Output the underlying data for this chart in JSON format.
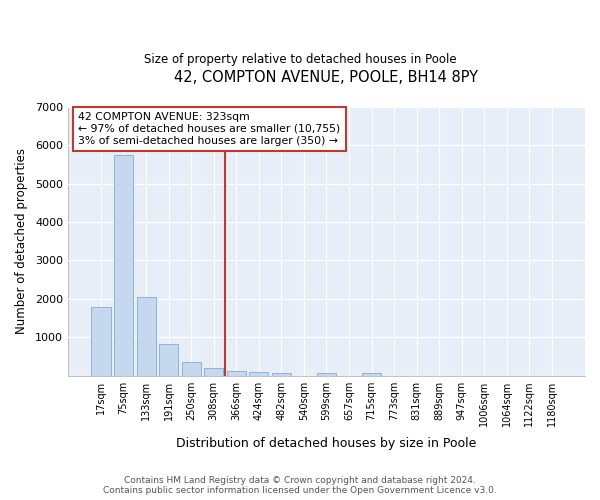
{
  "title1": "42, COMPTON AVENUE, POOLE, BH14 8PY",
  "title2": "Size of property relative to detached houses in Poole",
  "xlabel": "Distribution of detached houses by size in Poole",
  "ylabel": "Number of detached properties",
  "bar_color": "#c5d8ee",
  "bar_edge_color": "#7aaed6",
  "background_color": "#e8eef8",
  "grid_color": "#ffffff",
  "vline_color": "#c0392b",
  "vline_x": 5.5,
  "annotation_line1": "42 COMPTON AVENUE: 323sqm",
  "annotation_line2": "← 97% of detached houses are smaller (10,755)",
  "annotation_line3": "3% of semi-detached houses are larger (350) →",
  "annotation_box_color": "#c0392b",
  "categories": [
    "17sqm",
    "75sqm",
    "133sqm",
    "191sqm",
    "250sqm",
    "308sqm",
    "366sqm",
    "424sqm",
    "482sqm",
    "540sqm",
    "599sqm",
    "657sqm",
    "715sqm",
    "773sqm",
    "831sqm",
    "889sqm",
    "947sqm",
    "1006sqm",
    "1064sqm",
    "1122sqm",
    "1180sqm"
  ],
  "values": [
    1780,
    5750,
    2050,
    820,
    360,
    200,
    120,
    100,
    60,
    0,
    70,
    0,
    60,
    0,
    0,
    0,
    0,
    0,
    0,
    0,
    0
  ],
  "ylim": [
    0,
    7000
  ],
  "yticks": [
    0,
    1000,
    2000,
    3000,
    4000,
    5000,
    6000,
    7000
  ],
  "footer1": "Contains HM Land Registry data © Crown copyright and database right 2024.",
  "footer2": "Contains public sector information licensed under the Open Government Licence v3.0."
}
